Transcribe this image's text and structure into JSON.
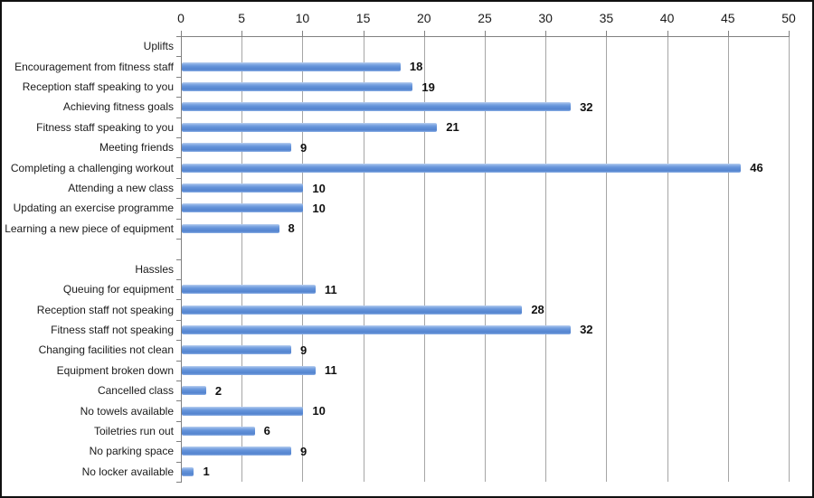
{
  "chart_data": {
    "type": "bar",
    "orientation": "horizontal",
    "title": "",
    "xlabel": "",
    "ylabel": "",
    "xlim": [
      0,
      50
    ],
    "x_ticks": [
      0,
      5,
      10,
      15,
      20,
      25,
      30,
      35,
      40,
      45,
      50
    ],
    "grid": true,
    "legend": false,
    "rows": [
      {
        "label": "Uplifts",
        "value": null
      },
      {
        "label": "Encouragement from fitness staff",
        "value": 18
      },
      {
        "label": "Reception staff speaking to you",
        "value": 19
      },
      {
        "label": "Achieving fitness goals",
        "value": 32
      },
      {
        "label": "Fitness staff speaking to you",
        "value": 21
      },
      {
        "label": "Meeting friends",
        "value": 9
      },
      {
        "label": "Completing a challenging workout",
        "value": 46
      },
      {
        "label": "Attending a new class",
        "value": 10
      },
      {
        "label": "Updating an exercise programme",
        "value": 10
      },
      {
        "label": "Learning a new piece of equipment",
        "value": 8
      },
      {
        "label": "",
        "value": null
      },
      {
        "label": "Hassles",
        "value": null
      },
      {
        "label": "Queuing for equipment",
        "value": 11
      },
      {
        "label": "Reception staff not speaking",
        "value": 28
      },
      {
        "label": "Fitness staff not speaking",
        "value": 32
      },
      {
        "label": "Changing facilities not clean",
        "value": 9
      },
      {
        "label": "Equipment broken down",
        "value": 11
      },
      {
        "label": "Cancelled class",
        "value": 2
      },
      {
        "label": "No towels available",
        "value": 10
      },
      {
        "label": "Toiletries run out",
        "value": 6
      },
      {
        "label": "No parking space",
        "value": 9
      },
      {
        "label": "No locker available",
        "value": 1
      }
    ],
    "colors": {
      "bar": "#6392d9",
      "gridline": "#a6a6a6",
      "axis": "#808080",
      "text": "#1a1a1a",
      "background": "#ffffff",
      "frame_border": "#111111"
    }
  }
}
